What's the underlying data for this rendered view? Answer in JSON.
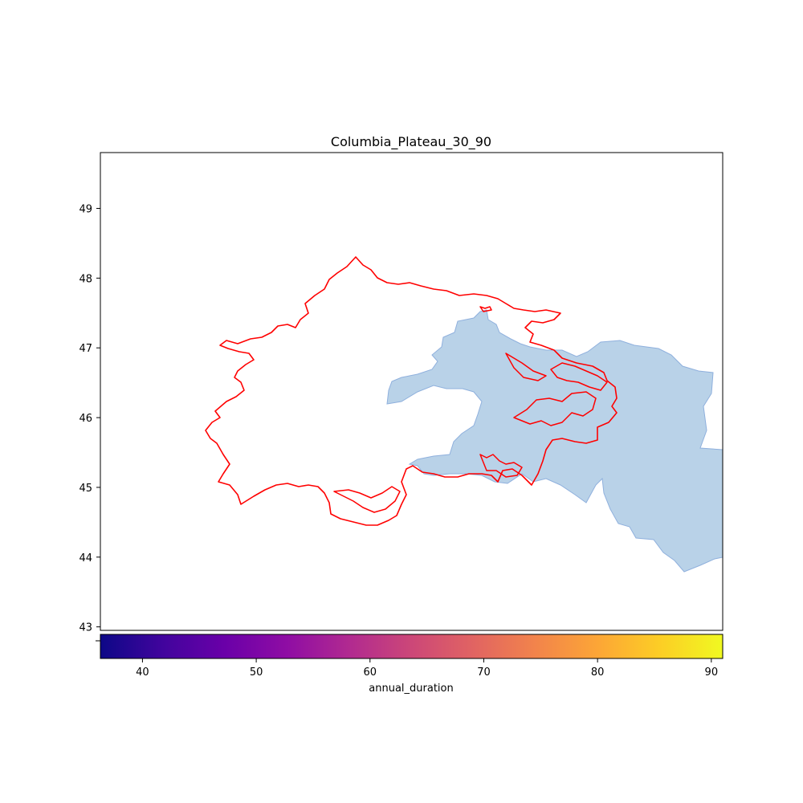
{
  "chart_data": {
    "type": "map",
    "title": "Columbia_Plateau_30_90",
    "ylim": [
      42.95,
      49.8
    ],
    "yticks": [
      "43",
      "44",
      "45",
      "46",
      "47",
      "48",
      "49"
    ],
    "layers": [
      {
        "kind": "filled-region",
        "color": "#b9d2e8",
        "edge_color": "#8fb0dd"
      },
      {
        "kind": "outline-boundary",
        "color": "#ff0000"
      }
    ],
    "colorbar": {
      "label": "annual_duration",
      "colormap": "plasma",
      "range": [
        36.3,
        91
      ],
      "ticks": [
        "40",
        "50",
        "60",
        "70",
        "80",
        "90"
      ]
    }
  }
}
